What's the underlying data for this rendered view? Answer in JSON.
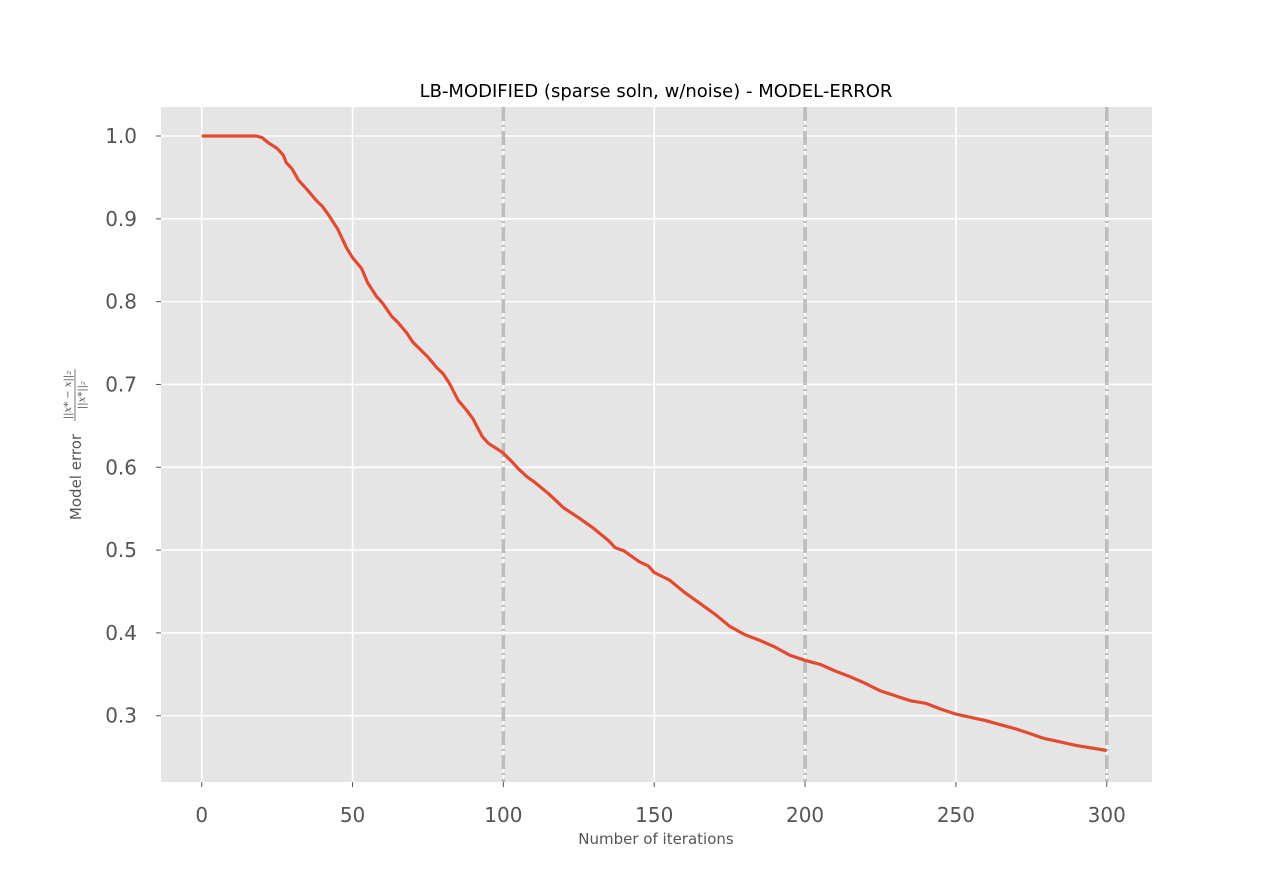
{
  "chart_data": {
    "type": "line",
    "title": "LB-MODIFIED (sparse soln, w/noise) - MODEL-ERROR",
    "xlabel": "Number of iterations",
    "ylabel": "Model error",
    "ylabel_formula": {
      "numerator": "||x* − x||₂",
      "denominator": "||x*||₂"
    },
    "xlim": [
      -13.5,
      315
    ],
    "ylim": [
      0.22,
      1.035
    ],
    "xticks": [
      0,
      50,
      100,
      150,
      200,
      250,
      300
    ],
    "xtick_labels": [
      "0",
      "50",
      "100",
      "150",
      "200",
      "250",
      "300"
    ],
    "yticks": [
      0.3,
      0.4,
      0.5,
      0.6,
      0.7,
      0.8,
      0.9,
      1.0
    ],
    "ytick_labels": [
      "0.3",
      "0.4",
      "0.5",
      "0.6",
      "0.7",
      "0.8",
      "0.9",
      "1.0"
    ],
    "grid": true,
    "vertical_markers": [
      100,
      200,
      300
    ],
    "series": [
      {
        "color": "#e24a33",
        "x": [
          0,
          5,
          10,
          15,
          18,
          20,
          22,
          25,
          27,
          28,
          30,
          32,
          35,
          38,
          40,
          42,
          45,
          48,
          50,
          53,
          55,
          58,
          60,
          63,
          65,
          68,
          70,
          75,
          78,
          80,
          82,
          85,
          88,
          90,
          93,
          95,
          98,
          100,
          103,
          105,
          108,
          110,
          115,
          120,
          125,
          130,
          135,
          137,
          140,
          145,
          148,
          150,
          155,
          160,
          165,
          170,
          175,
          180,
          185,
          190,
          195,
          200,
          205,
          210,
          215,
          220,
          225,
          230,
          235,
          240,
          245,
          250,
          255,
          260,
          265,
          270,
          275,
          278,
          280,
          285,
          290,
          295,
          300
        ],
        "y": [
          1.0,
          1.0,
          1.0,
          1.0,
          1.0,
          0.998,
          0.992,
          0.985,
          0.977,
          0.968,
          0.96,
          0.947,
          0.935,
          0.922,
          0.915,
          0.905,
          0.888,
          0.865,
          0.853,
          0.84,
          0.823,
          0.806,
          0.798,
          0.782,
          0.775,
          0.762,
          0.751,
          0.733,
          0.72,
          0.713,
          0.702,
          0.681,
          0.668,
          0.658,
          0.637,
          0.629,
          0.622,
          0.617,
          0.606,
          0.598,
          0.588,
          0.583,
          0.568,
          0.551,
          0.539,
          0.526,
          0.511,
          0.503,
          0.499,
          0.486,
          0.481,
          0.473,
          0.464,
          0.449,
          0.436,
          0.423,
          0.408,
          0.398,
          0.391,
          0.383,
          0.373,
          0.367,
          0.362,
          0.354,
          0.347,
          0.339,
          0.33,
          0.324,
          0.318,
          0.315,
          0.308,
          0.302,
          0.298,
          0.294,
          0.289,
          0.284,
          0.278,
          0.274,
          0.272,
          0.268,
          0.264,
          0.261,
          0.258
        ]
      }
    ]
  }
}
